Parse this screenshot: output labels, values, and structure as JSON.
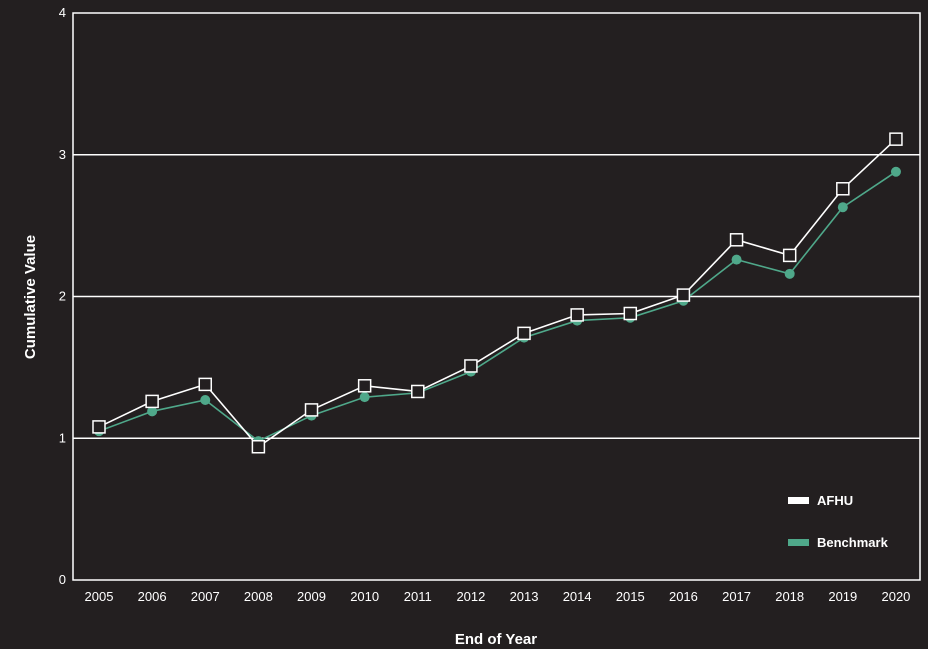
{
  "chart_data": {
    "type": "line",
    "title": "",
    "xlabel": "End of Year",
    "ylabel": "Cumulative Value",
    "ylim": [
      0,
      4
    ],
    "yticks": [
      0,
      1,
      2,
      3,
      4
    ],
    "categories": [
      "2005",
      "2006",
      "2007",
      "2008",
      "2009",
      "2010",
      "2011",
      "2012",
      "2013",
      "2014",
      "2015",
      "2016",
      "2017",
      "2018",
      "2019",
      "2020"
    ],
    "grid": true,
    "legend_position": "bottom-right",
    "series": [
      {
        "name": "AFHU",
        "color": "#ffffff",
        "marker": "open-square",
        "values": [
          1.08,
          1.26,
          1.38,
          0.94,
          1.2,
          1.37,
          1.33,
          1.51,
          1.74,
          1.87,
          1.88,
          2.01,
          2.4,
          2.29,
          2.76,
          3.11
        ]
      },
      {
        "name": "Benchmark",
        "color": "#4fa88a",
        "marker": "filled-circle",
        "values": [
          1.05,
          1.19,
          1.27,
          0.98,
          1.16,
          1.29,
          1.32,
          1.47,
          1.71,
          1.83,
          1.85,
          1.97,
          2.26,
          2.16,
          2.63,
          2.88
        ]
      }
    ]
  },
  "colors": {
    "background": "#231f20",
    "frame": "#ffffff",
    "gridline": "#ffffff"
  }
}
